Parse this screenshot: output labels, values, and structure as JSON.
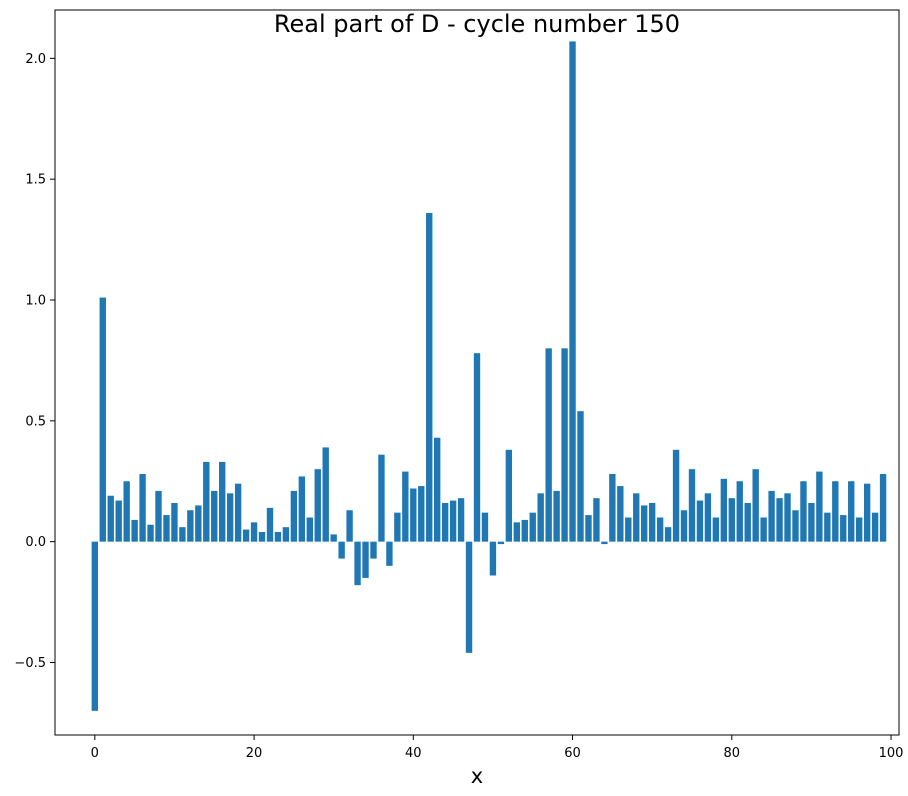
{
  "chart_data": {
    "type": "bar",
    "title": "Real part of D - cycle number 150",
    "xlabel": "x",
    "ylabel": "",
    "xlim": [
      -5,
      101
    ],
    "ylim": [
      -0.8,
      2.2
    ],
    "xticks": [
      0,
      20,
      40,
      60,
      80,
      100
    ],
    "xtick_labels": [
      "0",
      "20",
      "40",
      "60",
      "80",
      "100"
    ],
    "yticks": [
      -0.5,
      0.0,
      0.5,
      1.0,
      1.5,
      2.0
    ],
    "ytick_labels": [
      "−0.5",
      "0.0",
      "0.5",
      "1.0",
      "1.5",
      "2.0"
    ],
    "grid": false,
    "bar_color": "#1f77b4",
    "x": [
      0,
      1,
      2,
      3,
      4,
      5,
      6,
      7,
      8,
      9,
      10,
      11,
      12,
      13,
      14,
      15,
      16,
      17,
      18,
      19,
      20,
      21,
      22,
      23,
      24,
      25,
      26,
      27,
      28,
      29,
      30,
      31,
      32,
      33,
      34,
      35,
      36,
      37,
      38,
      39,
      40,
      41,
      42,
      43,
      44,
      45,
      46,
      47,
      48,
      49,
      50,
      51,
      52,
      53,
      54,
      55,
      56,
      57,
      58,
      59,
      60,
      61,
      62,
      63,
      64,
      65,
      66,
      67,
      68,
      69,
      70,
      71,
      72,
      73,
      74,
      75,
      76,
      77,
      78,
      79,
      80,
      81,
      82,
      83,
      84,
      85,
      86,
      87,
      88,
      89,
      90,
      91,
      92,
      93,
      94,
      95,
      96,
      97,
      98,
      99
    ],
    "values": [
      -0.7,
      1.01,
      0.19,
      0.17,
      0.25,
      0.09,
      0.28,
      0.07,
      0.21,
      0.11,
      0.16,
      0.06,
      0.13,
      0.15,
      0.33,
      0.21,
      0.33,
      0.2,
      0.24,
      0.05,
      0.08,
      0.04,
      0.14,
      0.04,
      0.06,
      0.21,
      0.27,
      0.1,
      0.3,
      0.39,
      0.03,
      -0.07,
      0.13,
      -0.18,
      -0.15,
      -0.07,
      0.36,
      -0.1,
      0.12,
      0.29,
      0.22,
      0.23,
      1.36,
      0.43,
      0.16,
      0.17,
      0.18,
      -0.46,
      0.78,
      0.12,
      -0.14,
      -0.01,
      0.38,
      0.08,
      0.09,
      0.12,
      0.2,
      0.8,
      0.21,
      0.8,
      2.07,
      0.54,
      0.11,
      0.18,
      -0.01,
      0.28,
      0.23,
      0.1,
      0.2,
      0.15,
      0.16,
      0.1,
      0.06,
      0.38,
      0.13,
      0.3,
      0.17,
      0.2,
      0.1,
      0.26,
      0.18,
      0.25,
      0.16,
      0.3,
      0.1,
      0.21,
      0.18,
      0.2,
      0.13,
      0.25,
      0.16,
      0.29,
      0.12,
      0.25,
      0.11,
      0.25,
      0.1,
      0.24,
      0.12,
      0.28
    ]
  }
}
